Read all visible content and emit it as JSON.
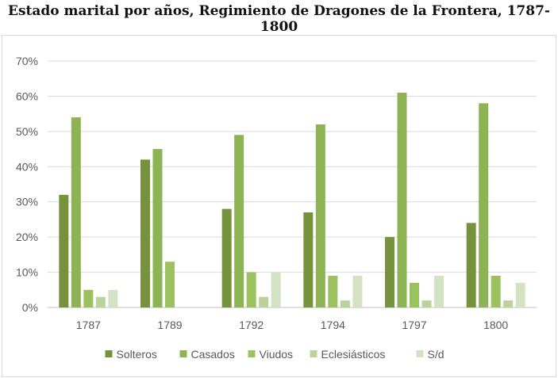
{
  "chart_data": {
    "type": "bar",
    "title": "Estado marital por años, Regimiento de Dragones de la Frontera, 1787-1800",
    "categories": [
      "1787",
      "1789",
      "1792",
      "1794",
      "1797",
      "1800"
    ],
    "ylim": [
      0,
      70
    ],
    "yticks": [
      "0%",
      "10%",
      "20%",
      "30%",
      "40%",
      "50%",
      "60%",
      "70%"
    ],
    "grid": true,
    "legend": "bottom",
    "series": [
      {
        "name": "Solteros",
        "color": "#76923c",
        "values": [
          32,
          42,
          28,
          27,
          20,
          24
        ]
      },
      {
        "name": "Casados",
        "color": "#8db354",
        "values": [
          54,
          45,
          49,
          52,
          61,
          58
        ]
      },
      {
        "name": "Viudos",
        "color": "#9bc25f",
        "values": [
          5,
          13,
          10,
          9,
          7,
          9
        ]
      },
      {
        "name": "Eclesiásticos",
        "color": "#b9d39b",
        "values": [
          3,
          0,
          3,
          2,
          2,
          2
        ]
      },
      {
        "name": "S/d",
        "color": "#d3e2c3",
        "values": [
          5,
          0,
          10,
          9,
          9,
          7
        ]
      }
    ]
  }
}
